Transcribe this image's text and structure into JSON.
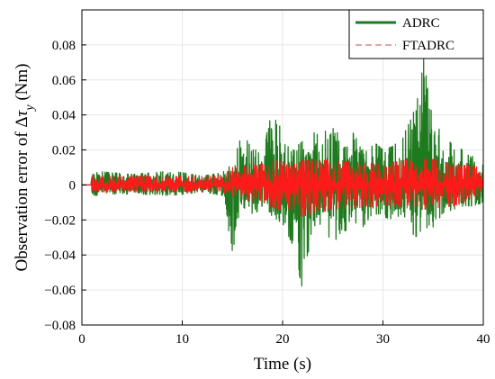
{
  "chart_data": {
    "type": "line",
    "title": "",
    "xlabel": "Time (s)",
    "ylabel_prefix": "Observation error of Δ",
    "ylabel_symbol": "τ",
    "ylabel_subscript": "y",
    "ylabel_suffix": " (Nm)",
    "xlim": [
      0,
      40
    ],
    "ylim": [
      -0.08,
      0.1
    ],
    "x_ticks": [
      0,
      10,
      20,
      30,
      40
    ],
    "x_tick_labels": [
      "0",
      "10",
      "20",
      "30",
      "40"
    ],
    "y_ticks": [
      -0.08,
      -0.06,
      -0.04,
      -0.02,
      0,
      0.02,
      0.04,
      0.06,
      0.08
    ],
    "y_tick_labels": [
      "−0.08",
      "−0.06",
      "−0.04",
      "−0.02",
      "0",
      "0.02",
      "0.04",
      "0.06",
      "0.08"
    ],
    "grid": true,
    "legend_position": "top-right",
    "series": [
      {
        "name": "ADRC",
        "color": "#1e7a1e",
        "style": "solid",
        "envelope": [
          {
            "x": 0.0,
            "min": 0.0,
            "max": 0.0
          },
          {
            "x": 0.9,
            "min": 0.0,
            "max": 0.0
          },
          {
            "x": 1.0,
            "min": -0.006,
            "max": 0.008
          },
          {
            "x": 5.0,
            "min": -0.005,
            "max": 0.006
          },
          {
            "x": 9.0,
            "min": -0.006,
            "max": 0.008
          },
          {
            "x": 12.0,
            "min": -0.004,
            "max": 0.005
          },
          {
            "x": 14.0,
            "min": -0.006,
            "max": 0.007
          },
          {
            "x": 15.0,
            "min": -0.038,
            "max": 0.012
          },
          {
            "x": 16.0,
            "min": -0.012,
            "max": 0.03
          },
          {
            "x": 17.0,
            "min": -0.018,
            "max": 0.02
          },
          {
            "x": 18.0,
            "min": -0.012,
            "max": 0.02
          },
          {
            "x": 19.0,
            "min": -0.018,
            "max": 0.043
          },
          {
            "x": 19.5,
            "min": -0.02,
            "max": 0.052
          },
          {
            "x": 20.0,
            "min": -0.022,
            "max": 0.024
          },
          {
            "x": 21.0,
            "min": -0.034,
            "max": 0.02
          },
          {
            "x": 22.0,
            "min": -0.06,
            "max": 0.025
          },
          {
            "x": 23.0,
            "min": -0.022,
            "max": 0.03
          },
          {
            "x": 24.0,
            "min": -0.028,
            "max": 0.028
          },
          {
            "x": 25.0,
            "min": -0.036,
            "max": 0.038
          },
          {
            "x": 26.0,
            "min": -0.028,
            "max": 0.02
          },
          {
            "x": 27.0,
            "min": -0.022,
            "max": 0.03
          },
          {
            "x": 28.0,
            "min": -0.024,
            "max": 0.02
          },
          {
            "x": 29.0,
            "min": -0.016,
            "max": 0.025
          },
          {
            "x": 30.0,
            "min": -0.018,
            "max": 0.02
          },
          {
            "x": 31.0,
            "min": -0.02,
            "max": 0.022
          },
          {
            "x": 32.0,
            "min": -0.016,
            "max": 0.028
          },
          {
            "x": 33.0,
            "min": -0.03,
            "max": 0.04
          },
          {
            "x": 34.0,
            "min": -0.028,
            "max": 0.074
          },
          {
            "x": 35.0,
            "min": -0.024,
            "max": 0.035
          },
          {
            "x": 36.0,
            "min": -0.016,
            "max": 0.03
          },
          {
            "x": 37.0,
            "min": -0.014,
            "max": 0.022
          },
          {
            "x": 38.0,
            "min": -0.012,
            "max": 0.02
          },
          {
            "x": 39.0,
            "min": -0.012,
            "max": 0.016
          },
          {
            "x": 40.0,
            "min": -0.01,
            "max": 0.015
          }
        ]
      },
      {
        "name": "FTADRC",
        "color": "#ff1a1a",
        "legend_color": "#d98c8c",
        "style": "dashed",
        "envelope": [
          {
            "x": 0.0,
            "min": 0.0,
            "max": 0.0
          },
          {
            "x": 0.9,
            "min": 0.0,
            "max": 0.0
          },
          {
            "x": 1.0,
            "min": -0.004,
            "max": 0.005
          },
          {
            "x": 14.0,
            "min": -0.004,
            "max": 0.005
          },
          {
            "x": 15.0,
            "min": -0.008,
            "max": 0.01
          },
          {
            "x": 18.0,
            "min": -0.01,
            "max": 0.012
          },
          {
            "x": 19.5,
            "min": -0.014,
            "max": 0.014
          },
          {
            "x": 21.0,
            "min": -0.016,
            "max": 0.012
          },
          {
            "x": 22.0,
            "min": -0.018,
            "max": 0.014
          },
          {
            "x": 25.0,
            "min": -0.014,
            "max": 0.014
          },
          {
            "x": 30.0,
            "min": -0.012,
            "max": 0.012
          },
          {
            "x": 34.0,
            "min": -0.014,
            "max": 0.016
          },
          {
            "x": 37.0,
            "min": -0.012,
            "max": 0.012
          },
          {
            "x": 40.0,
            "min": -0.008,
            "max": 0.01
          }
        ]
      }
    ]
  }
}
